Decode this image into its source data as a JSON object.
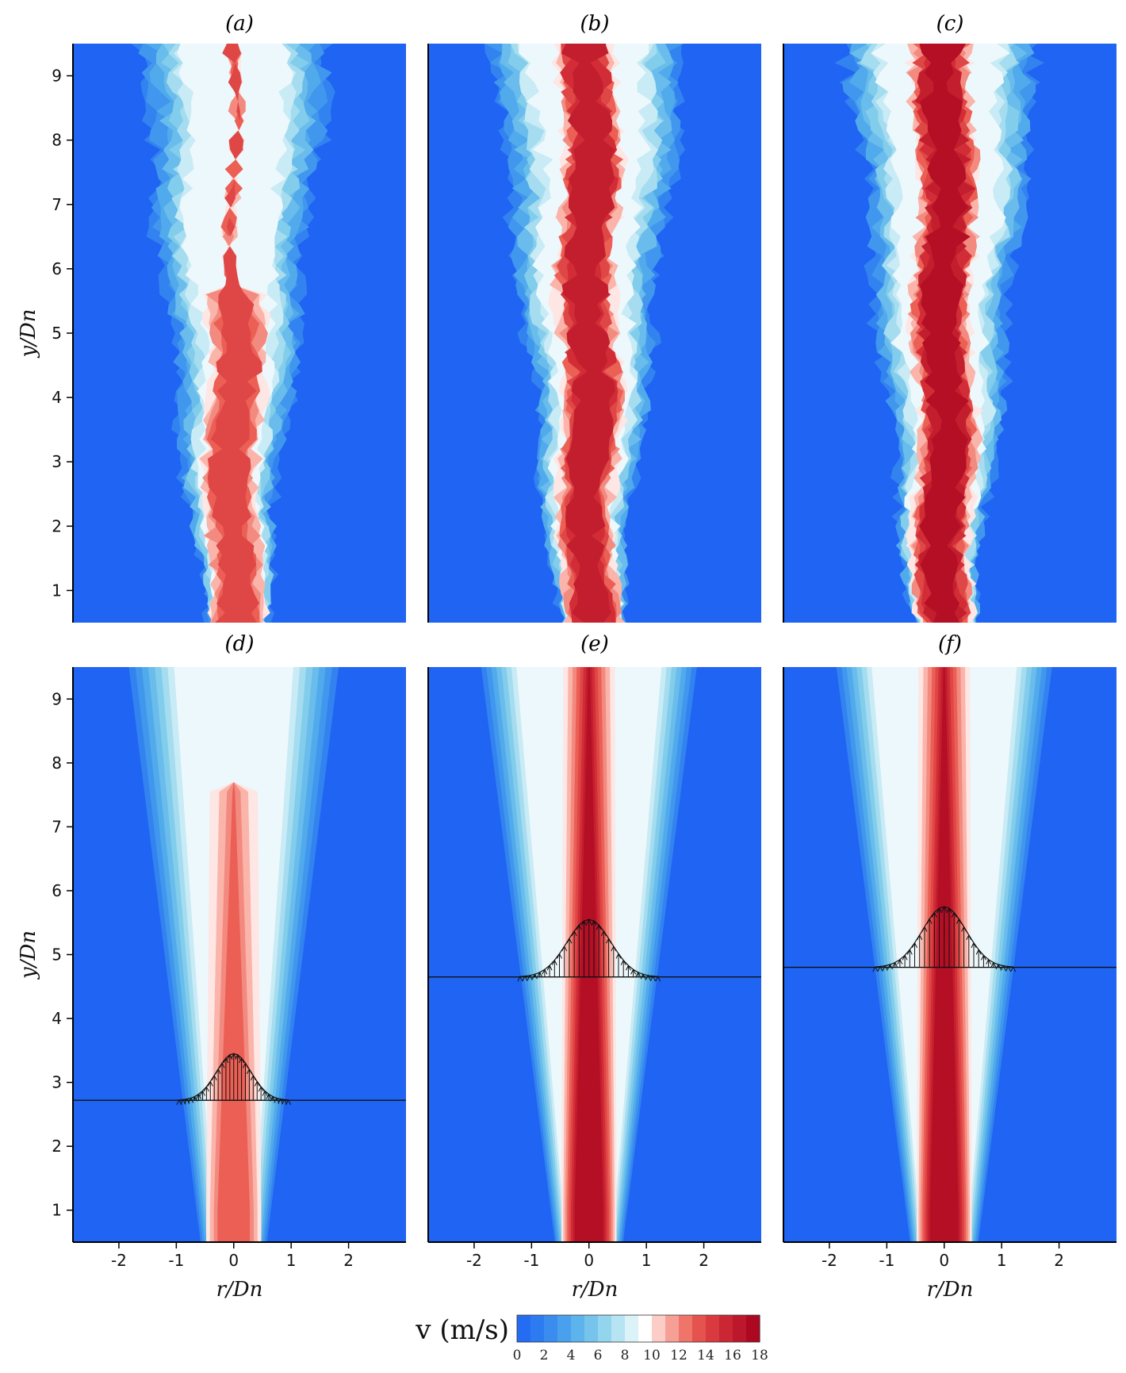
{
  "chart_data": {
    "type": "heatmap",
    "description_units": "contour maps of axial velocity v",
    "panels": [
      {
        "id": "a",
        "title": "(a)",
        "kind": "instantaneous",
        "core_vmax": 14,
        "core_end_y": 5.4,
        "profile_line_y": null
      },
      {
        "id": "b",
        "title": "(b)",
        "kind": "instantaneous",
        "core_vmax": 16,
        "core_end_y": 9.5,
        "profile_line_y": null
      },
      {
        "id": "c",
        "title": "(c)",
        "kind": "instantaneous",
        "core_vmax": 17,
        "core_end_y": 9.5,
        "profile_line_y": null
      },
      {
        "id": "d",
        "title": "(d)",
        "kind": "mean",
        "core_vmax": 13,
        "core_end_y": 7.6,
        "profile_line_y": 2.72,
        "profile_peak_y": 3.45,
        "profile_halfwidth": 0.95
      },
      {
        "id": "e",
        "title": "(e)",
        "kind": "mean",
        "core_vmax": 17,
        "core_end_y": 9.5,
        "profile_line_y": 4.65,
        "profile_peak_y": 5.55,
        "profile_halfwidth": 1.2
      },
      {
        "id": "f",
        "title": "(f)",
        "kind": "mean",
        "core_vmax": 17,
        "core_end_y": 9.5,
        "profile_line_y": 4.8,
        "profile_peak_y": 5.75,
        "profile_halfwidth": 1.2
      }
    ],
    "xlabel": "r/D_n",
    "ylabel": "y/D_n",
    "xlim": [
      -2.8,
      3.0
    ],
    "ylim": [
      0.5,
      9.5
    ],
    "xticks": [
      "-2",
      "-1",
      "0",
      "1",
      "2"
    ],
    "yticks": [
      "1",
      "2",
      "3",
      "4",
      "5",
      "6",
      "7",
      "8",
      "9"
    ],
    "colorbar": {
      "label": "v (m/s)",
      "range": [
        0,
        18
      ],
      "ticks": [
        "0",
        "2",
        "4",
        "6",
        "8",
        "10",
        "12",
        "14",
        "16",
        "18"
      ],
      "colors_low": "#1f64f2",
      "colors_mid": "#ffffff",
      "colors_high": "#a8001c"
    }
  }
}
